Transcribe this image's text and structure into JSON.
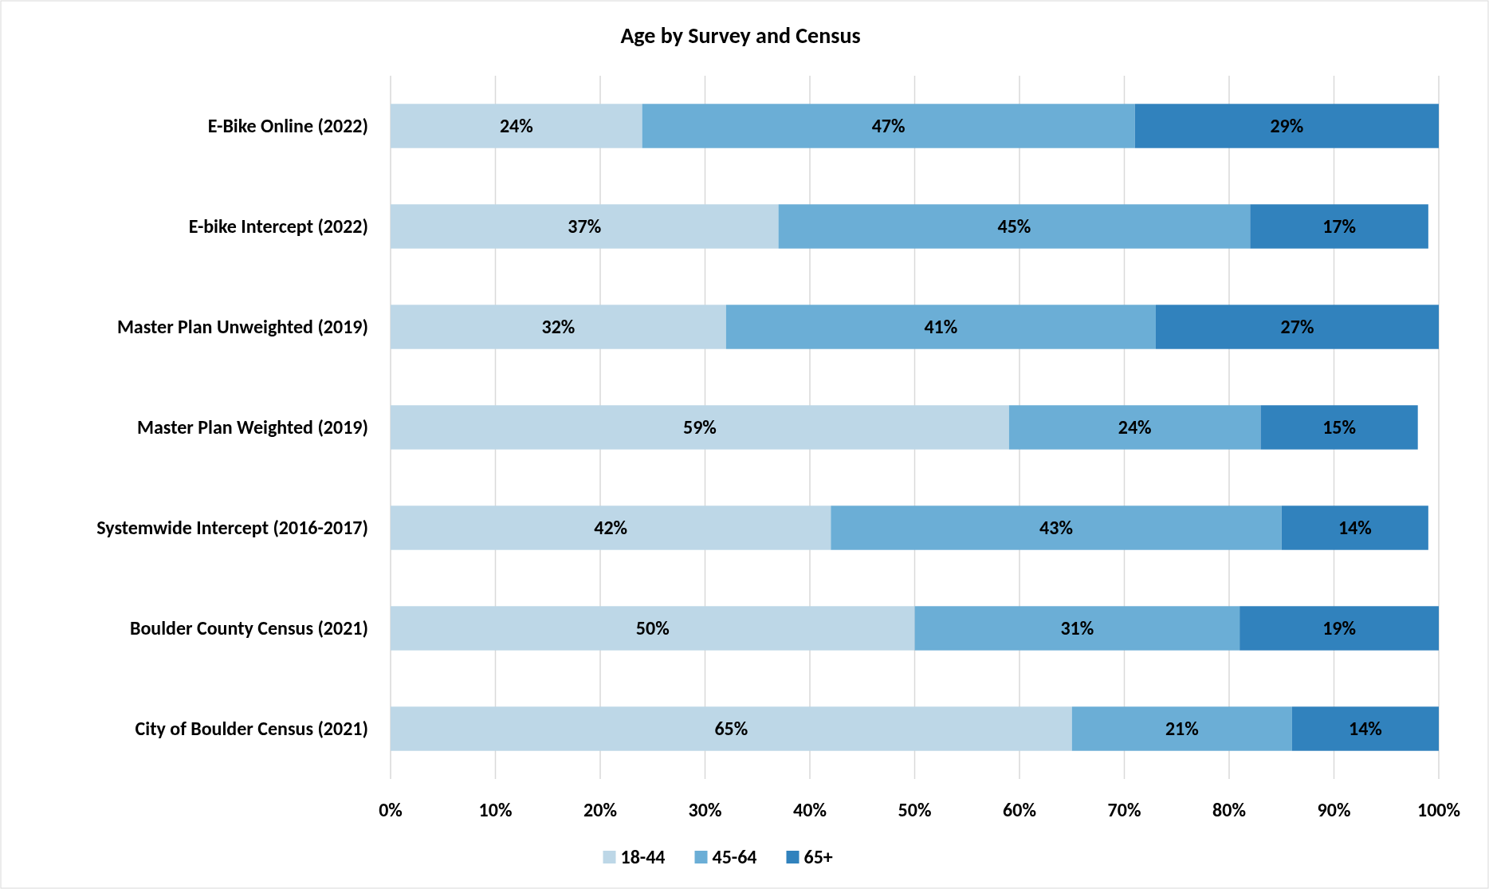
{
  "chart_data": {
    "type": "bar",
    "orientation": "horizontal",
    "stacked": true,
    "title": "Age by Survey and Census",
    "categories": [
      "E-Bike Online (2022)",
      "E-bike Intercept (2022)",
      "Master Plan Unweighted (2019)",
      "Master Plan Weighted (2019)",
      "Systemwide Intercept (2016-2017)",
      "Boulder County Census (2021)",
      "City of Boulder Census (2021)"
    ],
    "series": [
      {
        "name": "18-44",
        "color": "#bdd7e7",
        "values": [
          24,
          37,
          32,
          59,
          42,
          50,
          65
        ],
        "value_labels": [
          "24%",
          "37%",
          "32%",
          "59%",
          "42%",
          "50%",
          "65%"
        ]
      },
      {
        "name": "45-64",
        "color": "#6baed6",
        "values": [
          47,
          45,
          41,
          24,
          43,
          31,
          21
        ],
        "value_labels": [
          "47%",
          "45%",
          "41%",
          "24%",
          "43%",
          "31%",
          "21%"
        ]
      },
      {
        "name": "65+",
        "color": "#3182bd",
        "values": [
          29,
          17,
          27,
          15,
          14,
          19,
          14
        ],
        "value_labels": [
          "29%",
          "17%",
          "27%",
          "15%",
          "14%",
          "19%",
          "14%"
        ]
      }
    ],
    "xlim": [
      0,
      100
    ],
    "xticks": [
      {
        "value": 0,
        "label": "0%"
      },
      {
        "value": 10,
        "label": "10%"
      },
      {
        "value": 20,
        "label": "20%"
      },
      {
        "value": 30,
        "label": "30%"
      },
      {
        "value": 40,
        "label": "40%"
      },
      {
        "value": 50,
        "label": "50%"
      },
      {
        "value": 60,
        "label": "60%"
      },
      {
        "value": 70,
        "label": "70%"
      },
      {
        "value": 80,
        "label": "80%"
      },
      {
        "value": 90,
        "label": "90%"
      },
      {
        "value": 100,
        "label": "100%"
      }
    ],
    "grid": "x",
    "legend": "bottom"
  }
}
